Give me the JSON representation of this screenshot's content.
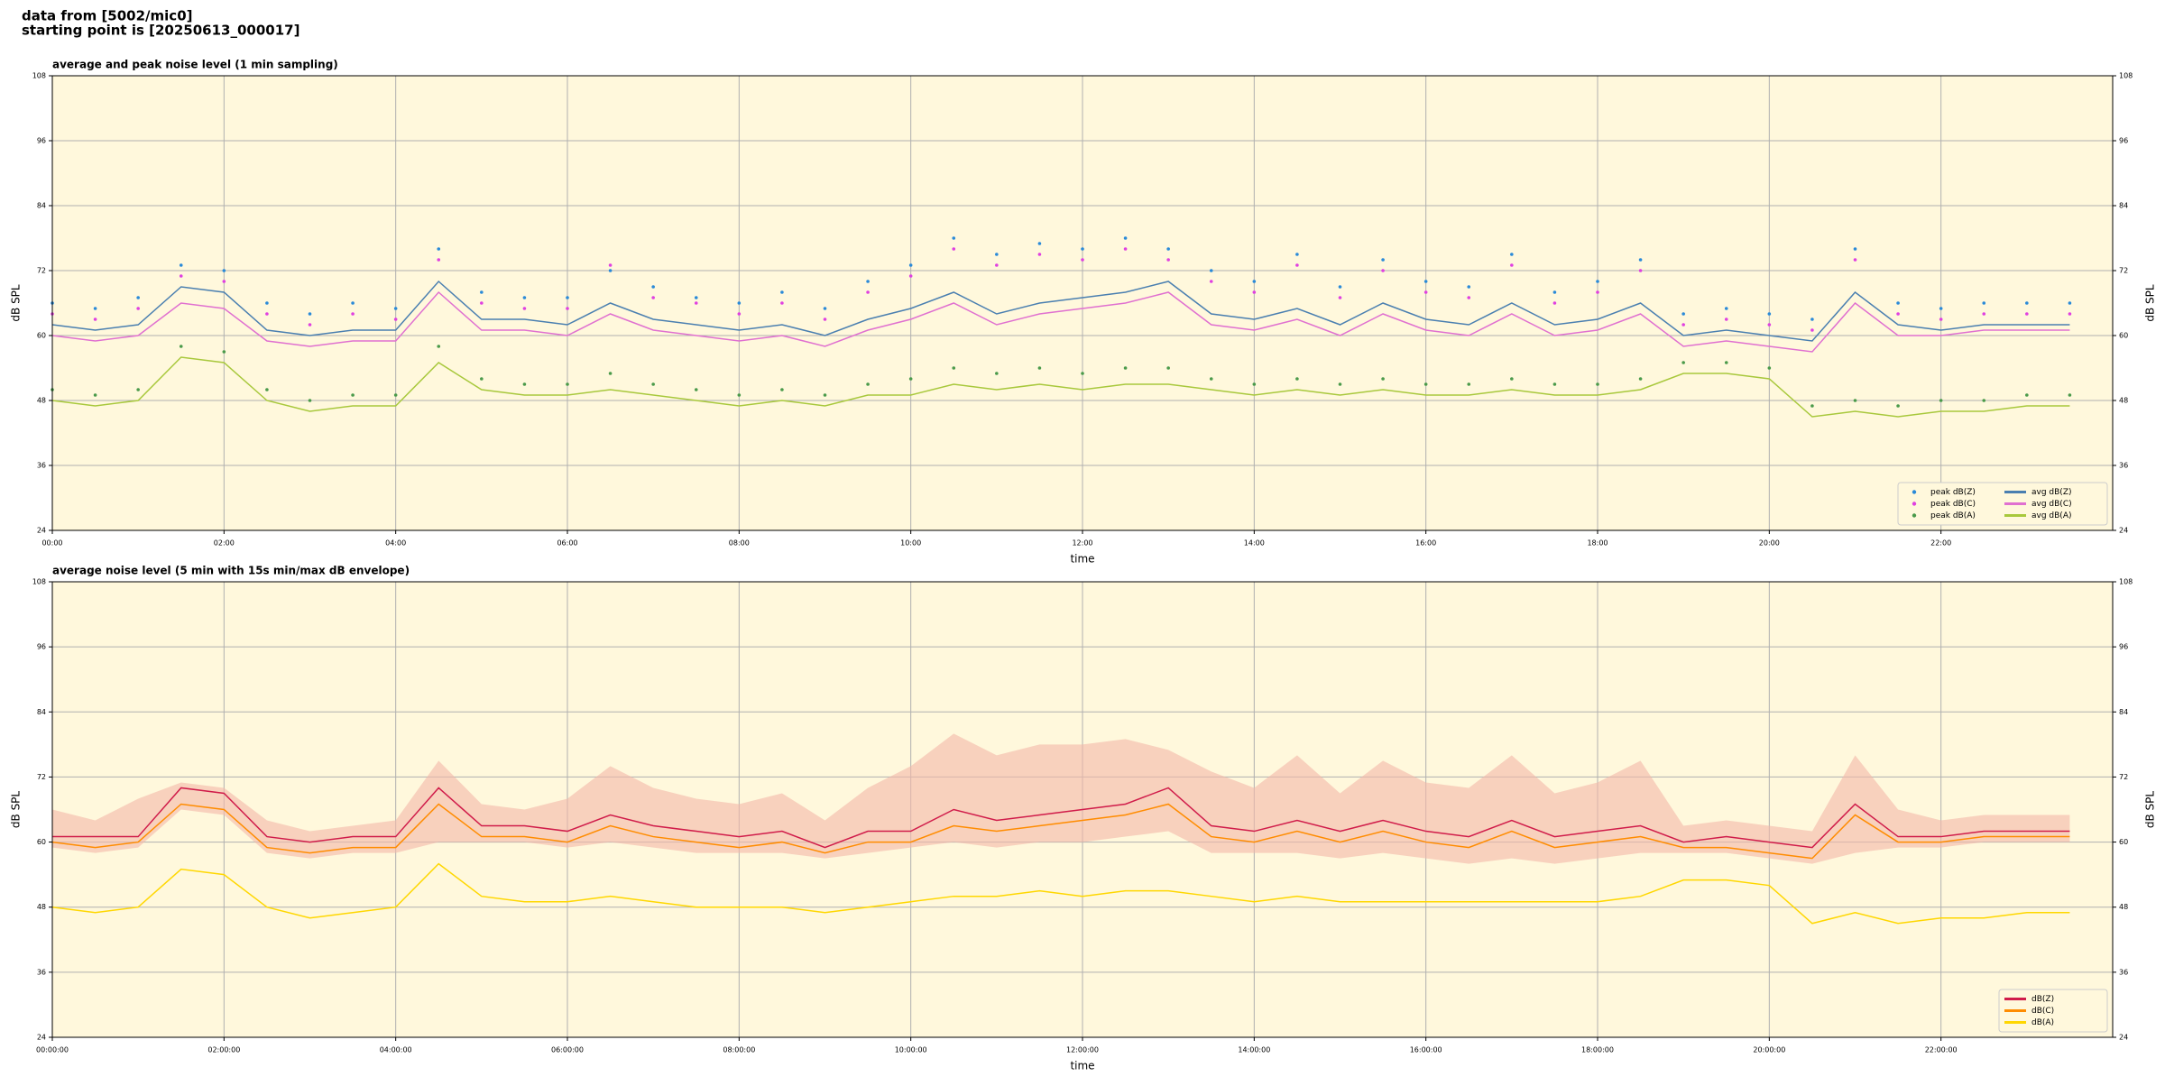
{
  "header": {
    "line1": "data from [5002/mic0]",
    "line2": "starting point is [20250613_000017]"
  },
  "chart_data": [
    {
      "type": "line",
      "title": "average and peak noise level (1 min sampling)",
      "xlabel": "time",
      "ylabel": "dB SPL",
      "xlim": [
        0,
        24
      ],
      "ylim": [
        24,
        108
      ],
      "yticks": [
        24,
        36,
        48,
        60,
        72,
        84,
        96,
        108
      ],
      "xticks": [
        {
          "value": 0,
          "label": "00:00"
        },
        {
          "value": 2,
          "label": "02:00"
        },
        {
          "value": 4,
          "label": "04:00"
        },
        {
          "value": 6,
          "label": "06:00"
        },
        {
          "value": 8,
          "label": "08:00"
        },
        {
          "value": 10,
          "label": "10:00"
        },
        {
          "value": 12,
          "label": "12:00"
        },
        {
          "value": 14,
          "label": "14:00"
        },
        {
          "value": 16,
          "label": "16:00"
        },
        {
          "value": 18,
          "label": "18:00"
        },
        {
          "value": 20,
          "label": "20:00"
        },
        {
          "value": 22,
          "label": "22:00"
        }
      ],
      "grid": true,
      "legend": "lower right",
      "legend_columns": 2,
      "x": [
        0,
        0.5,
        1,
        1.5,
        2,
        2.5,
        3,
        3.5,
        4,
        4.5,
        5,
        5.5,
        6,
        6.5,
        7,
        7.5,
        8,
        8.5,
        9,
        9.5,
        10,
        10.5,
        11,
        11.5,
        12,
        12.5,
        13,
        13.5,
        14,
        14.5,
        15,
        15.5,
        16,
        16.5,
        17,
        17.5,
        18,
        18.5,
        19,
        19.5,
        20,
        20.5,
        21,
        21.5,
        22,
        22.5,
        23,
        23.5
      ],
      "series": [
        {
          "name": "peak dB(Z)",
          "style": "dots",
          "color": "#2a8ad8",
          "values": [
            66,
            65,
            67,
            73,
            72,
            66,
            64,
            66,
            65,
            76,
            68,
            67,
            67,
            72,
            69,
            67,
            66,
            68,
            65,
            70,
            73,
            78,
            75,
            77,
            76,
            78,
            76,
            72,
            70,
            75,
            69,
            74,
            70,
            69,
            75,
            68,
            70,
            74,
            64,
            65,
            64,
            63,
            76,
            66,
            65,
            66,
            66,
            66
          ]
        },
        {
          "name": "peak dB(C)",
          "style": "dots",
          "color": "#e040e0",
          "values": [
            64,
            63,
            65,
            71,
            70,
            64,
            62,
            64,
            63,
            74,
            66,
            65,
            65,
            73,
            67,
            66,
            64,
            66,
            63,
            68,
            71,
            76,
            73,
            75,
            74,
            76,
            74,
            70,
            68,
            73,
            67,
            72,
            68,
            67,
            73,
            66,
            68,
            72,
            62,
            63,
            62,
            61,
            74,
            64,
            63,
            64,
            64,
            64
          ]
        },
        {
          "name": "peak dB(A)",
          "style": "dots",
          "color": "#4a9a4a",
          "values": [
            50,
            49,
            50,
            58,
            57,
            50,
            48,
            49,
            49,
            58,
            52,
            51,
            51,
            53,
            51,
            50,
            49,
            50,
            49,
            51,
            52,
            54,
            53,
            54,
            53,
            54,
            54,
            52,
            51,
            52,
            51,
            52,
            51,
            51,
            52,
            51,
            51,
            52,
            55,
            55,
            54,
            47,
            48,
            47,
            48,
            48,
            49,
            49
          ]
        },
        {
          "name": "avg dB(Z)",
          "style": "line",
          "color": "#4a7fb0",
          "values": [
            62,
            61,
            62,
            69,
            68,
            61,
            60,
            61,
            61,
            70,
            63,
            63,
            62,
            66,
            63,
            62,
            61,
            62,
            60,
            63,
            65,
            68,
            64,
            66,
            67,
            68,
            70,
            64,
            63,
            65,
            62,
            66,
            63,
            62,
            66,
            62,
            63,
            66,
            60,
            61,
            60,
            59,
            68,
            62,
            61,
            62,
            62,
            62
          ]
        },
        {
          "name": "avg dB(C)",
          "style": "line",
          "color": "#e070d0",
          "values": [
            60,
            59,
            60,
            66,
            65,
            59,
            58,
            59,
            59,
            68,
            61,
            61,
            60,
            64,
            61,
            60,
            59,
            60,
            58,
            61,
            63,
            66,
            62,
            64,
            65,
            66,
            68,
            62,
            61,
            63,
            60,
            64,
            61,
            60,
            64,
            60,
            61,
            64,
            58,
            59,
            58,
            57,
            66,
            60,
            60,
            61,
            61,
            61
          ]
        },
        {
          "name": "avg dB(A)",
          "style": "line",
          "color": "#a8c83c",
          "values": [
            48,
            47,
            48,
            56,
            55,
            48,
            46,
            47,
            47,
            55,
            50,
            49,
            49,
            50,
            49,
            48,
            47,
            48,
            47,
            49,
            49,
            51,
            50,
            51,
            50,
            51,
            51,
            50,
            49,
            50,
            49,
            50,
            49,
            49,
            50,
            49,
            49,
            50,
            53,
            53,
            52,
            45,
            46,
            45,
            46,
            46,
            47,
            47
          ]
        }
      ]
    },
    {
      "type": "line",
      "title": "average noise level (5 min with 15s min/max dB envelope)",
      "xlabel": "time",
      "ylabel": "dB SPL",
      "xlim": [
        0,
        24
      ],
      "ylim": [
        24,
        108
      ],
      "yticks": [
        24,
        36,
        48,
        60,
        72,
        84,
        96,
        108
      ],
      "xticks": [
        {
          "value": 0,
          "label": "00:00:00"
        },
        {
          "value": 2,
          "label": "02:00:00"
        },
        {
          "value": 4,
          "label": "04:00:00"
        },
        {
          "value": 6,
          "label": "06:00:00"
        },
        {
          "value": 8,
          "label": "08:00:00"
        },
        {
          "value": 10,
          "label": "10:00:00"
        },
        {
          "value": 12,
          "label": "12:00:00"
        },
        {
          "value": 14,
          "label": "14:00:00"
        },
        {
          "value": 16,
          "label": "16:00:00"
        },
        {
          "value": 18,
          "label": "18:00:00"
        },
        {
          "value": 20,
          "label": "20:00:00"
        },
        {
          "value": 22,
          "label": "22:00:00"
        }
      ],
      "grid": true,
      "legend": "lower right",
      "legend_columns": 1,
      "x": [
        0,
        0.5,
        1,
        1.5,
        2,
        2.5,
        3,
        3.5,
        4,
        4.5,
        5,
        5.5,
        6,
        6.5,
        7,
        7.5,
        8,
        8.5,
        9,
        9.5,
        10,
        10.5,
        11,
        11.5,
        12,
        12.5,
        13,
        13.5,
        14,
        14.5,
        15,
        15.5,
        16,
        16.5,
        17,
        17.5,
        18,
        18.5,
        19,
        19.5,
        20,
        20.5,
        21,
        21.5,
        22,
        22.5,
        23,
        23.5
      ],
      "envelope": {
        "color": "#f4b8a8",
        "upper": [
          66,
          64,
          68,
          71,
          70,
          64,
          62,
          63,
          64,
          75,
          67,
          66,
          68,
          74,
          70,
          68,
          67,
          69,
          64,
          70,
          74,
          80,
          76,
          78,
          78,
          79,
          77,
          73,
          70,
          76,
          69,
          75,
          71,
          70,
          76,
          69,
          71,
          75,
          63,
          64,
          63,
          62,
          76,
          66,
          64,
          65,
          65,
          65
        ],
        "lower": [
          59,
          58,
          59,
          66,
          65,
          58,
          57,
          58,
          58,
          60,
          60,
          60,
          59,
          60,
          59,
          58,
          58,
          58,
          57,
          58,
          59,
          60,
          59,
          60,
          60,
          61,
          62,
          58,
          58,
          58,
          57,
          58,
          57,
          56,
          57,
          56,
          57,
          58,
          58,
          58,
          57,
          56,
          58,
          59,
          59,
          60,
          60,
          60
        ]
      },
      "series": [
        {
          "name": "dB(Z)",
          "style": "line",
          "color": "#d01c4a",
          "values": [
            61,
            61,
            61,
            70,
            69,
            61,
            60,
            61,
            61,
            70,
            63,
            63,
            62,
            65,
            63,
            62,
            61,
            62,
            59,
            62,
            62,
            66,
            64,
            65,
            66,
            67,
            70,
            63,
            62,
            64,
            62,
            64,
            62,
            61,
            64,
            61,
            62,
            63,
            60,
            61,
            60,
            59,
            67,
            61,
            61,
            62,
            62,
            62
          ]
        },
        {
          "name": "dB(C)",
          "style": "line",
          "color": "#ff8c00",
          "values": [
            60,
            59,
            60,
            67,
            66,
            59,
            58,
            59,
            59,
            67,
            61,
            61,
            60,
            63,
            61,
            60,
            59,
            60,
            58,
            60,
            60,
            63,
            62,
            63,
            64,
            65,
            67,
            61,
            60,
            62,
            60,
            62,
            60,
            59,
            62,
            59,
            60,
            61,
            59,
            59,
            58,
            57,
            65,
            60,
            60,
            61,
            61,
            61
          ]
        },
        {
          "name": "dB(A)",
          "style": "line",
          "color": "#ffd700",
          "values": [
            48,
            47,
            48,
            55,
            54,
            48,
            46,
            47,
            48,
            56,
            50,
            49,
            49,
            50,
            49,
            48,
            48,
            48,
            47,
            48,
            49,
            50,
            50,
            51,
            50,
            51,
            51,
            50,
            49,
            50,
            49,
            49,
            49,
            49,
            49,
            49,
            49,
            50,
            53,
            53,
            52,
            45,
            47,
            45,
            46,
            46,
            47,
            47
          ]
        }
      ]
    }
  ]
}
